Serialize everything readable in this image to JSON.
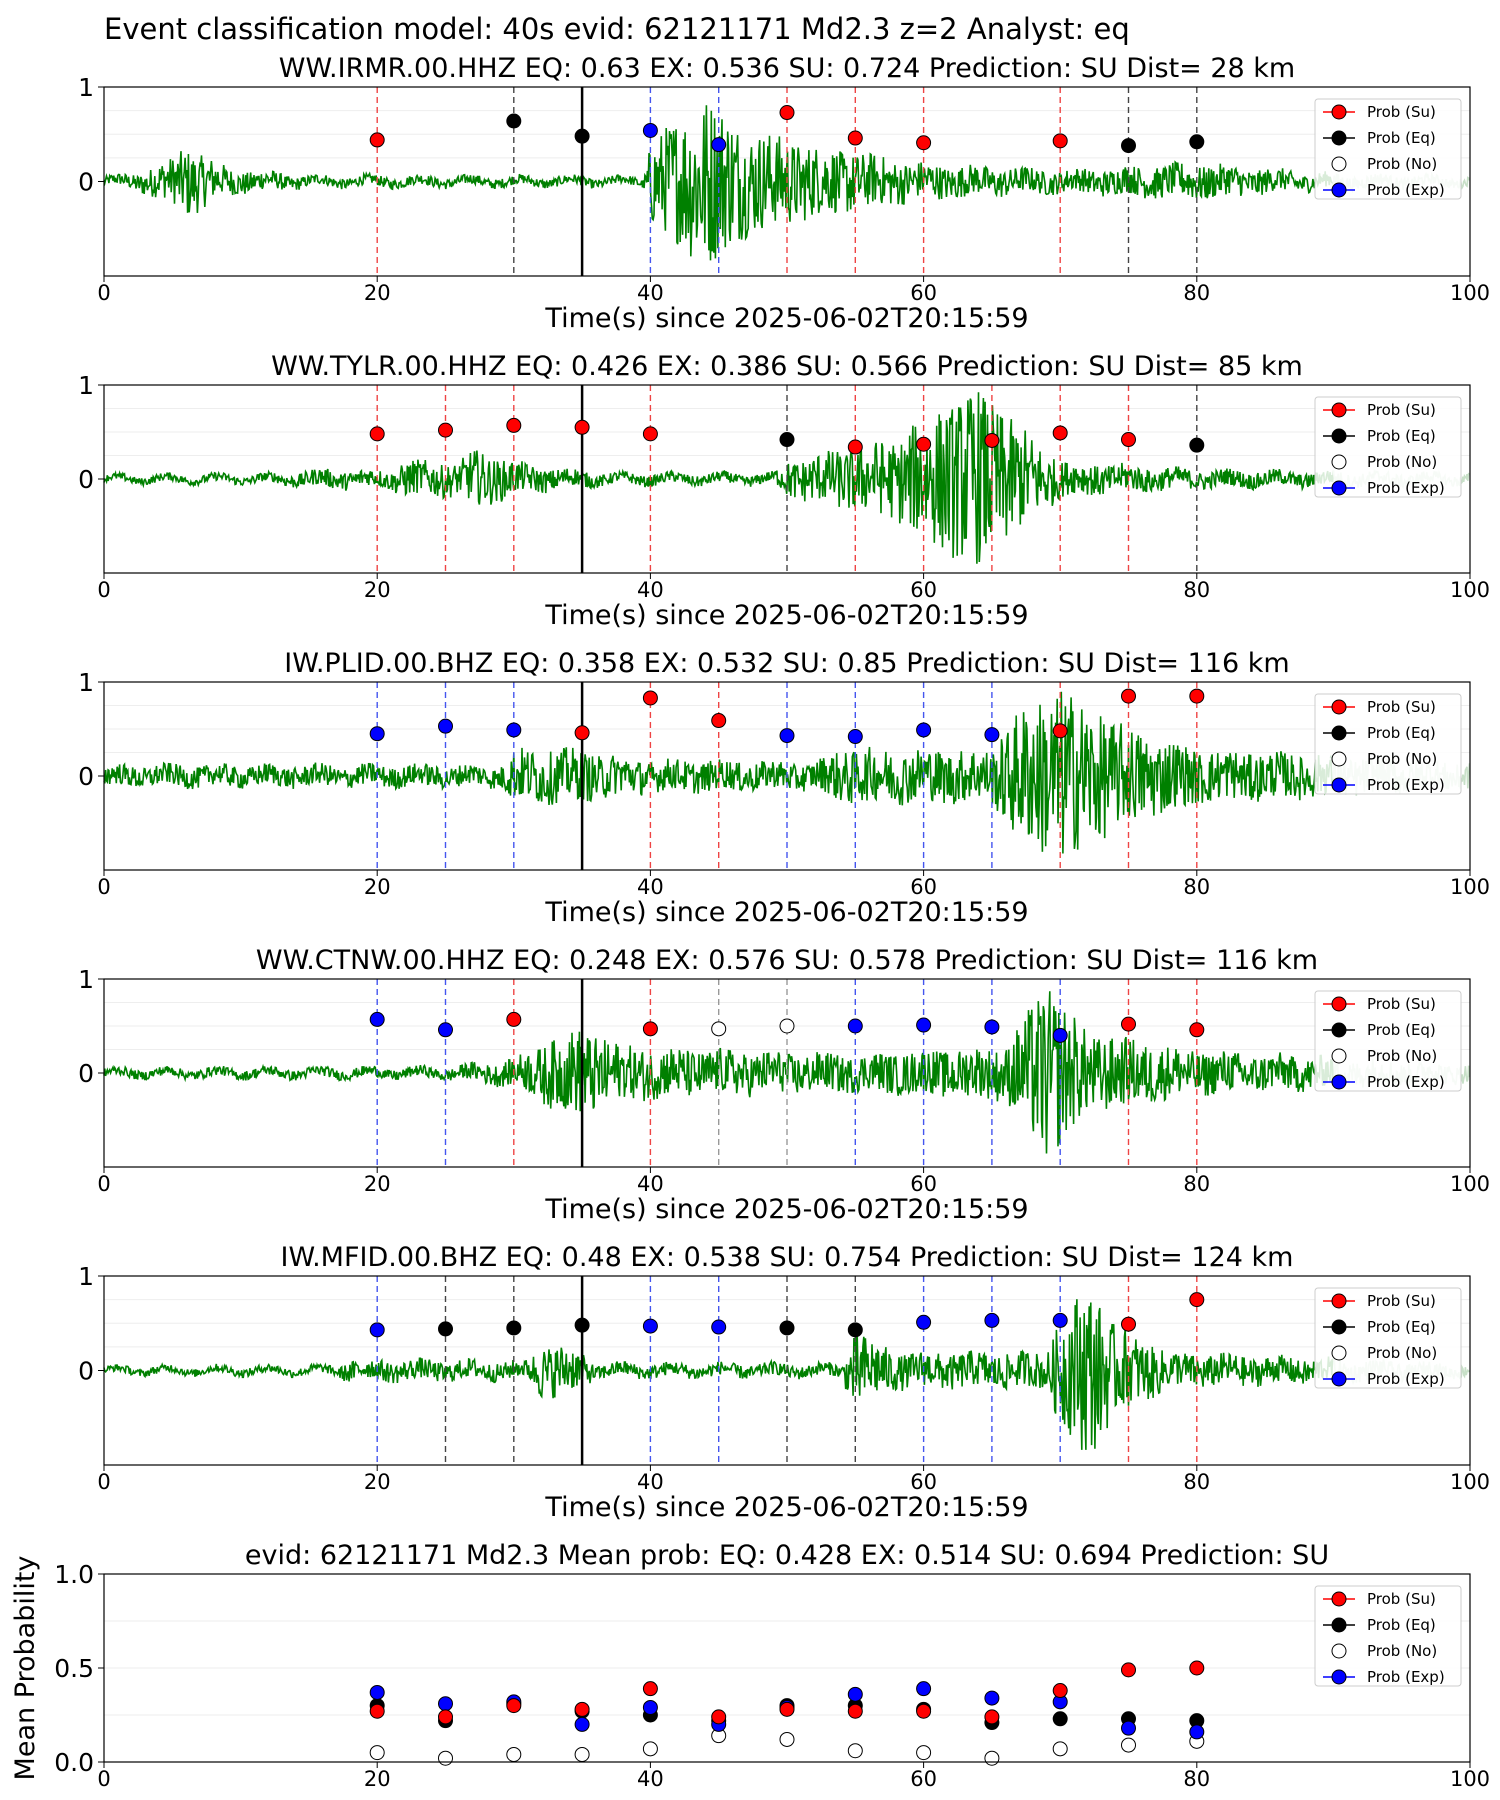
{
  "figure": {
    "title": "Event classification model: 40s evid: 62121171 Md2.3 z=2 Analyst: eq"
  },
  "legend": {
    "items": [
      {
        "key": "su",
        "label": "Prob (Su)",
        "color": "#ff0000",
        "marker": "filled"
      },
      {
        "key": "eq",
        "label": "Prob (Eq)",
        "color": "#000000",
        "marker": "filled"
      },
      {
        "key": "no",
        "label": "Prob (No)",
        "color": "#ffffff",
        "marker": "hollow"
      },
      {
        "key": "ex",
        "label": "Prob (Exp)",
        "color": "#0000ff",
        "marker": "filled"
      }
    ]
  },
  "colors": {
    "waveform": "#008000",
    "waveform_faded": "#c8e0c8",
    "su": "#ff0000",
    "eq": "#000000",
    "ex": "#0000ff",
    "no": "#ffffff",
    "origin_line": "#000000"
  },
  "chart_data": [
    {
      "type": "line",
      "title": "WW.IRMR.00.HHZ   EQ: 0.63  EX: 0.536  SU: 0.724   Prediction: SU    Dist= 28 km",
      "xlabel": "Time(s) since 2025-06-02T20:15:59",
      "xlim": [
        0,
        100
      ],
      "ylim": [
        -1,
        1
      ],
      "x_ticks": [
        "0",
        "20",
        "40",
        "60",
        "80",
        "100"
      ],
      "y_ticks": [
        "0",
        "1"
      ],
      "origin_time": 35,
      "windows": [
        {
          "x": 20,
          "cls": "su",
          "p": 0.44
        },
        {
          "x": 30,
          "cls": "eq",
          "p": 0.64
        },
        {
          "x": 35,
          "cls": "eq",
          "p": 0.48
        },
        {
          "x": 40,
          "cls": "ex",
          "p": 0.54
        },
        {
          "x": 45,
          "cls": "ex",
          "p": 0.39
        },
        {
          "x": 50,
          "cls": "su",
          "p": 0.73
        },
        {
          "x": 55,
          "cls": "su",
          "p": 0.46
        },
        {
          "x": 60,
          "cls": "su",
          "p": 0.41
        },
        {
          "x": 70,
          "cls": "su",
          "p": 0.43
        },
        {
          "x": 75,
          "cls": "eq",
          "p": 0.38
        },
        {
          "x": 80,
          "cls": "eq",
          "p": 0.42
        }
      ],
      "waveform_envelope": [
        {
          "t": 0,
          "a": 0.05
        },
        {
          "t": 2,
          "a": 0.08
        },
        {
          "t": 5,
          "a": 0.25
        },
        {
          "t": 6,
          "a": 0.4
        },
        {
          "t": 9,
          "a": 0.15
        },
        {
          "t": 15,
          "a": 0.06
        },
        {
          "t": 39.5,
          "a": 0.05
        },
        {
          "t": 40,
          "a": 0.45
        },
        {
          "t": 44,
          "a": 1.0
        },
        {
          "t": 47,
          "a": 0.6
        },
        {
          "t": 52,
          "a": 0.4
        },
        {
          "t": 60,
          "a": 0.2
        },
        {
          "t": 70,
          "a": 0.12
        },
        {
          "t": 80,
          "a": 0.2
        },
        {
          "t": 90,
          "a": 0.08
        },
        {
          "t": 100,
          "a": 0.05
        }
      ]
    },
    {
      "type": "line",
      "title": "WW.TYLR.00.HHZ   EQ: 0.426  EX: 0.386  SU: 0.566   Prediction: SU    Dist= 85 km",
      "xlabel": "Time(s) since 2025-06-02T20:15:59",
      "xlim": [
        0,
        100
      ],
      "ylim": [
        -1,
        1
      ],
      "x_ticks": [
        "0",
        "20",
        "40",
        "60",
        "80",
        "100"
      ],
      "y_ticks": [
        "0",
        "1"
      ],
      "origin_time": 35,
      "windows": [
        {
          "x": 20,
          "cls": "su",
          "p": 0.48
        },
        {
          "x": 25,
          "cls": "su",
          "p": 0.52
        },
        {
          "x": 30,
          "cls": "su",
          "p": 0.57
        },
        {
          "x": 35,
          "cls": "su",
          "p": 0.55
        },
        {
          "x": 40,
          "cls": "su",
          "p": 0.48
        },
        {
          "x": 50,
          "cls": "eq",
          "p": 0.42
        },
        {
          "x": 55,
          "cls": "su",
          "p": 0.34
        },
        {
          "x": 60,
          "cls": "su",
          "p": 0.37
        },
        {
          "x": 65,
          "cls": "su",
          "p": 0.41
        },
        {
          "x": 70,
          "cls": "su",
          "p": 0.49
        },
        {
          "x": 75,
          "cls": "su",
          "p": 0.42
        },
        {
          "x": 80,
          "cls": "eq",
          "p": 0.36
        }
      ],
      "waveform_envelope": [
        {
          "t": 0,
          "a": 0.04
        },
        {
          "t": 12,
          "a": 0.05
        },
        {
          "t": 16,
          "a": 0.1
        },
        {
          "t": 21,
          "a": 0.1
        },
        {
          "t": 22,
          "a": 0.2
        },
        {
          "t": 26,
          "a": 0.18
        },
        {
          "t": 27,
          "a": 0.32
        },
        {
          "t": 31,
          "a": 0.15
        },
        {
          "t": 37,
          "a": 0.06
        },
        {
          "t": 49,
          "a": 0.06
        },
        {
          "t": 50,
          "a": 0.2
        },
        {
          "t": 53,
          "a": 0.3
        },
        {
          "t": 58,
          "a": 0.45
        },
        {
          "t": 60,
          "a": 0.7
        },
        {
          "t": 64,
          "a": 1.0
        },
        {
          "t": 67,
          "a": 0.6
        },
        {
          "t": 70,
          "a": 0.2
        },
        {
          "t": 80,
          "a": 0.1
        },
        {
          "t": 100,
          "a": 0.06
        }
      ]
    },
    {
      "type": "line",
      "title": "IW.PLID.00.BHZ   EQ: 0.358  EX: 0.532  SU: 0.85   Prediction: SU    Dist= 116 km",
      "xlabel": "Time(s) since 2025-06-02T20:15:59",
      "xlim": [
        0,
        100
      ],
      "ylim": [
        -1,
        1
      ],
      "x_ticks": [
        "0",
        "20",
        "40",
        "60",
        "80",
        "100"
      ],
      "y_ticks": [
        "0",
        "1"
      ],
      "origin_time": 35,
      "windows": [
        {
          "x": 20,
          "cls": "ex",
          "p": 0.45
        },
        {
          "x": 25,
          "cls": "ex",
          "p": 0.53
        },
        {
          "x": 30,
          "cls": "ex",
          "p": 0.49
        },
        {
          "x": 35,
          "cls": "su",
          "p": 0.46
        },
        {
          "x": 40,
          "cls": "su",
          "p": 0.83
        },
        {
          "x": 45,
          "cls": "su",
          "p": 0.59
        },
        {
          "x": 50,
          "cls": "ex",
          "p": 0.43
        },
        {
          "x": 55,
          "cls": "ex",
          "p": 0.42
        },
        {
          "x": 60,
          "cls": "ex",
          "p": 0.49
        },
        {
          "x": 65,
          "cls": "ex",
          "p": 0.44
        },
        {
          "x": 70,
          "cls": "su",
          "p": 0.48
        },
        {
          "x": 75,
          "cls": "su",
          "p": 0.85
        },
        {
          "x": 80,
          "cls": "su",
          "p": 0.85
        }
      ],
      "waveform_envelope": [
        {
          "t": 0,
          "a": 0.12
        },
        {
          "t": 20,
          "a": 0.12
        },
        {
          "t": 29,
          "a": 0.12
        },
        {
          "t": 30,
          "a": 0.3
        },
        {
          "t": 34,
          "a": 0.3
        },
        {
          "t": 40,
          "a": 0.18
        },
        {
          "t": 52,
          "a": 0.15
        },
        {
          "t": 54,
          "a": 0.3
        },
        {
          "t": 65,
          "a": 0.3
        },
        {
          "t": 67,
          "a": 0.75
        },
        {
          "t": 70,
          "a": 1.0
        },
        {
          "t": 74,
          "a": 0.6
        },
        {
          "t": 80,
          "a": 0.3
        },
        {
          "t": 100,
          "a": 0.15
        }
      ]
    },
    {
      "type": "line",
      "title": "WW.CTNW.00.HHZ   EQ: 0.248  EX: 0.576  SU: 0.578   Prediction: SU    Dist= 116 km",
      "xlabel": "Time(s) since 2025-06-02T20:15:59",
      "xlim": [
        0,
        100
      ],
      "ylim": [
        -1,
        1
      ],
      "x_ticks": [
        "0",
        "20",
        "40",
        "60",
        "80",
        "100"
      ],
      "y_ticks": [
        "0",
        "1"
      ],
      "origin_time": 35,
      "windows": [
        {
          "x": 20,
          "cls": "ex",
          "p": 0.57
        },
        {
          "x": 25,
          "cls": "ex",
          "p": 0.46
        },
        {
          "x": 30,
          "cls": "su",
          "p": 0.57
        },
        {
          "x": 40,
          "cls": "su",
          "p": 0.47
        },
        {
          "x": 45,
          "cls": "no",
          "p": 0.47
        },
        {
          "x": 50,
          "cls": "no",
          "p": 0.5
        },
        {
          "x": 55,
          "cls": "ex",
          "p": 0.5
        },
        {
          "x": 60,
          "cls": "ex",
          "p": 0.51
        },
        {
          "x": 65,
          "cls": "ex",
          "p": 0.49
        },
        {
          "x": 70,
          "cls": "ex",
          "p": 0.4
        },
        {
          "x": 75,
          "cls": "su",
          "p": 0.52
        },
        {
          "x": 80,
          "cls": "su",
          "p": 0.46
        }
      ],
      "waveform_envelope": [
        {
          "t": 0,
          "a": 0.05
        },
        {
          "t": 25,
          "a": 0.06
        },
        {
          "t": 30,
          "a": 0.15
        },
        {
          "t": 33,
          "a": 0.4
        },
        {
          "t": 35,
          "a": 0.5
        },
        {
          "t": 38,
          "a": 0.3
        },
        {
          "t": 46,
          "a": 0.25
        },
        {
          "t": 55,
          "a": 0.2
        },
        {
          "t": 66,
          "a": 0.3
        },
        {
          "t": 69,
          "a": 1.0
        },
        {
          "t": 72,
          "a": 0.45
        },
        {
          "t": 80,
          "a": 0.25
        },
        {
          "t": 100,
          "a": 0.1
        }
      ]
    },
    {
      "type": "line",
      "title": "IW.MFID.00.BHZ   EQ: 0.48  EX: 0.538  SU: 0.754   Prediction: SU    Dist= 124 km",
      "xlabel": "Time(s) since 2025-06-02T20:15:59",
      "xlim": [
        0,
        100
      ],
      "ylim": [
        -1,
        1
      ],
      "x_ticks": [
        "0",
        "20",
        "40",
        "60",
        "80",
        "100"
      ],
      "y_ticks": [
        "0",
        "1"
      ],
      "origin_time": 35,
      "windows": [
        {
          "x": 20,
          "cls": "ex",
          "p": 0.43
        },
        {
          "x": 25,
          "cls": "eq",
          "p": 0.44
        },
        {
          "x": 30,
          "cls": "eq",
          "p": 0.45
        },
        {
          "x": 35,
          "cls": "eq",
          "p": 0.48
        },
        {
          "x": 40,
          "cls": "ex",
          "p": 0.47
        },
        {
          "x": 45,
          "cls": "ex",
          "p": 0.46
        },
        {
          "x": 50,
          "cls": "eq",
          "p": 0.45
        },
        {
          "x": 55,
          "cls": "eq",
          "p": 0.43
        },
        {
          "x": 60,
          "cls": "ex",
          "p": 0.51
        },
        {
          "x": 65,
          "cls": "ex",
          "p": 0.53
        },
        {
          "x": 70,
          "cls": "ex",
          "p": 0.53
        },
        {
          "x": 75,
          "cls": "su",
          "p": 0.49
        },
        {
          "x": 80,
          "cls": "su",
          "p": 0.75
        }
      ],
      "waveform_envelope": [
        {
          "t": 0,
          "a": 0.04
        },
        {
          "t": 17,
          "a": 0.05
        },
        {
          "t": 18,
          "a": 0.12
        },
        {
          "t": 31,
          "a": 0.1
        },
        {
          "t": 32,
          "a": 0.3
        },
        {
          "t": 34,
          "a": 0.28
        },
        {
          "t": 36,
          "a": 0.08
        },
        {
          "t": 54,
          "a": 0.07
        },
        {
          "t": 55,
          "a": 0.45
        },
        {
          "t": 58,
          "a": 0.2
        },
        {
          "t": 69,
          "a": 0.2
        },
        {
          "t": 70,
          "a": 0.6
        },
        {
          "t": 72,
          "a": 1.0
        },
        {
          "t": 74,
          "a": 0.5
        },
        {
          "t": 78,
          "a": 0.2
        },
        {
          "t": 100,
          "a": 0.06
        }
      ]
    },
    {
      "type": "scatter",
      "title": "evid: 62121171  Md2.3   Mean prob:   EQ: 0.428  EX: 0.514  SU: 0.694   Prediction: SU",
      "ylabel": "Mean Probability",
      "xlim": [
        0,
        100
      ],
      "ylim": [
        0,
        1
      ],
      "x_ticks": [
        "0",
        "20",
        "40",
        "60",
        "80",
        "100"
      ],
      "y_ticks": [
        "0.0",
        "0.5",
        "1.0"
      ],
      "x": [
        20,
        25,
        30,
        35,
        40,
        45,
        50,
        55,
        60,
        65,
        70,
        75,
        80
      ],
      "series": [
        {
          "key": "no",
          "name": "Prob (No)",
          "values": [
            0.05,
            0.02,
            0.04,
            0.04,
            0.07,
            0.14,
            0.12,
            0.06,
            0.05,
            0.02,
            0.07,
            0.09,
            0.11
          ]
        },
        {
          "key": "eq",
          "name": "Prob (Eq)",
          "values": [
            0.3,
            0.22,
            0.31,
            0.27,
            0.25,
            0.22,
            0.3,
            0.3,
            0.28,
            0.21,
            0.23,
            0.23,
            0.22
          ]
        },
        {
          "key": "ex",
          "name": "Prob (Exp)",
          "values": [
            0.37,
            0.31,
            0.32,
            0.2,
            0.29,
            0.2,
            0.29,
            0.36,
            0.39,
            0.34,
            0.32,
            0.18,
            0.16
          ]
        },
        {
          "key": "su",
          "name": "Prob (Su)",
          "values": [
            0.27,
            0.24,
            0.3,
            0.28,
            0.39,
            0.24,
            0.28,
            0.27,
            0.27,
            0.24,
            0.38,
            0.49,
            0.5
          ]
        }
      ]
    }
  ]
}
